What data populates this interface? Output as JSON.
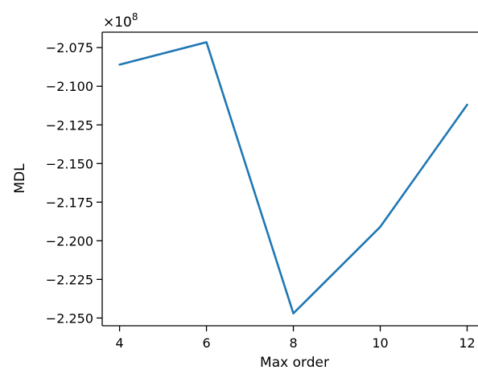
{
  "chart_data": {
    "type": "line",
    "x": [
      4,
      6,
      8,
      10,
      12
    ],
    "series": [
      {
        "values": [
          -208600000,
          -207150000,
          -224700000,
          -219100000,
          -211200000
        ]
      }
    ],
    "xlabel": "Max order",
    "ylabel": "MDL",
    "xticks": [
      "4",
      "6",
      "8",
      "10",
      "12"
    ],
    "yticks": [
      "−2.075",
      "−2.100",
      "−2.125",
      "−2.150",
      "−2.175",
      "−2.200",
      "−2.225",
      "−2.250"
    ],
    "ytick_values": [
      -2.075,
      -2.1,
      -2.125,
      -2.15,
      -2.175,
      -2.2,
      -2.225,
      -2.25
    ],
    "offset_base": "×10",
    "offset_exp": "8",
    "xlim": [
      3.6,
      12.25
    ],
    "ylim": [
      -225.5,
      -206.5
    ],
    "grid": false,
    "line_color": "#1f77b4"
  }
}
